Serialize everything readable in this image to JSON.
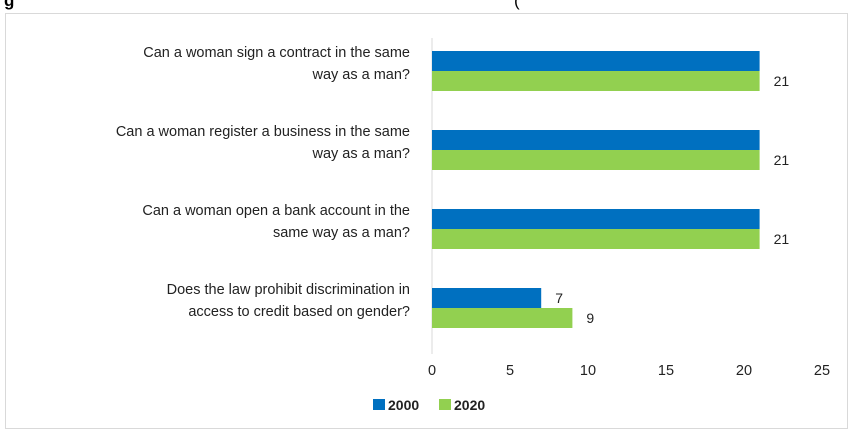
{
  "header": {
    "title_fragment": "g",
    "right_fragment": "("
  },
  "chart_data": {
    "type": "bar",
    "orientation": "horizontal",
    "title": "",
    "categories": [
      [
        "Can a woman sign a contract in the same",
        "way as a man?"
      ],
      [
        "Can a woman register a business in the same",
        "way as a man?"
      ],
      [
        "Can a woman open a bank account in the",
        "same way as a man?"
      ],
      [
        "Does the law prohibit discrimination in",
        "access to credit based on gender?"
      ]
    ],
    "series": [
      {
        "name": "2000",
        "color": "#0070c0",
        "values": [
          21,
          21,
          21,
          7
        ]
      },
      {
        "name": "2020",
        "color": "#92d050",
        "values": [
          21,
          21,
          21,
          9
        ]
      }
    ],
    "xlim": [
      0,
      25
    ],
    "x_ticks": [
      0,
      5,
      10,
      15,
      20,
      25
    ],
    "grid": false,
    "legend": "bottom-center",
    "data_labels_shown": [
      [
        false,
        false,
        false,
        true
      ],
      [
        true,
        true,
        true,
        true
      ]
    ]
  }
}
